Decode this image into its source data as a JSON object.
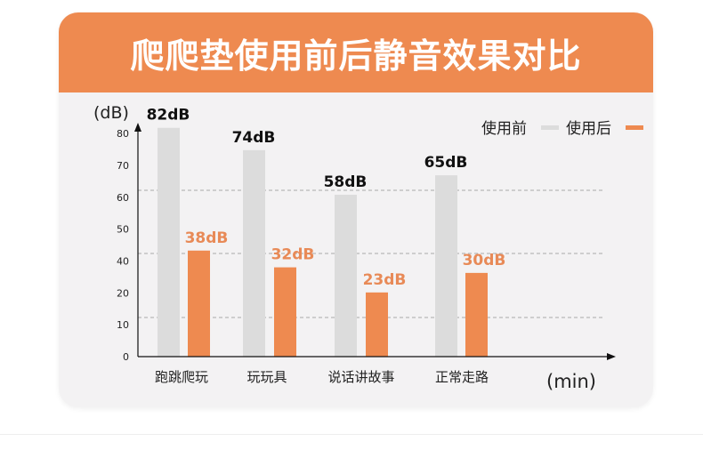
{
  "header": {
    "title": "爬爬垫使用前后静音效果对比"
  },
  "chart_data": {
    "type": "bar",
    "title": "爬爬垫使用前后静音效果对比",
    "ylabel": "(dB)",
    "xlabel": "(min)",
    "yticks": [
      "0",
      "10",
      "20",
      "40",
      "50",
      "60",
      "70",
      "80"
    ],
    "ylim": [
      0,
      80
    ],
    "categories": [
      "跑跳爬玩",
      "玩玩具",
      "说话讲故事",
      "正常走路"
    ],
    "series": [
      {
        "name": "使用前",
        "color": "#dcdcdc",
        "label_color": "#111111",
        "values": [
          82,
          74,
          58,
          65
        ],
        "labels": [
          "82dB",
          "74dB",
          "58dB",
          "65dB"
        ]
      },
      {
        "name": "使用后",
        "color": "#ee8a50",
        "label_color": "#e88a57",
        "values": [
          38,
          32,
          23,
          30
        ],
        "labels": [
          "38dB",
          "32dB",
          "23dB",
          "30dB"
        ]
      }
    ],
    "legend": "top-right",
    "grid": "dashed horizontal"
  }
}
